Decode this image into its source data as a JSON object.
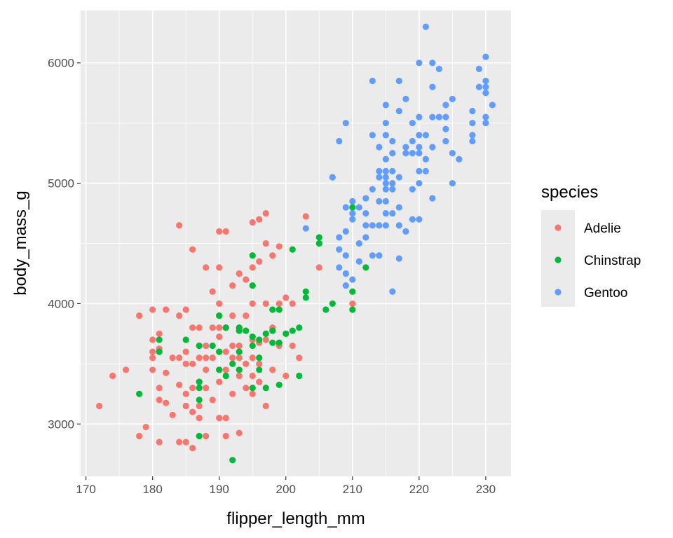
{
  "chart_data": {
    "type": "scatter",
    "xlabel": "flipper_length_mm",
    "ylabel": "body_mass_g",
    "xlim": [
      169.2,
      233.8
    ],
    "ylim": [
      2565,
      6435
    ],
    "x_ticks": [
      170,
      180,
      190,
      200,
      210,
      220,
      230
    ],
    "y_ticks": [
      3000,
      4000,
      5000,
      6000
    ],
    "grid": true,
    "background": "#ebebeb",
    "legend": {
      "title": "species",
      "position": "right"
    },
    "series": [
      {
        "name": "Adelie",
        "color": "#f8766d",
        "points": [
          [
            172,
            3150
          ],
          [
            174,
            3400
          ],
          [
            176,
            3450
          ],
          [
            178,
            2900
          ],
          [
            178,
            3900
          ],
          [
            179,
            2975
          ],
          [
            180,
            3950
          ],
          [
            180,
            3700
          ],
          [
            180,
            3600
          ],
          [
            180,
            3550
          ],
          [
            180,
            3450
          ],
          [
            181,
            2850
          ],
          [
            181,
            3200
          ],
          [
            181,
            3300
          ],
          [
            181,
            3625
          ],
          [
            181,
            3750
          ],
          [
            182,
            3175
          ],
          [
            182,
            3425
          ],
          [
            182,
            3950
          ],
          [
            183,
            3075
          ],
          [
            183,
            3550
          ],
          [
            184,
            2850
          ],
          [
            184,
            4650
          ],
          [
            184,
            3325
          ],
          [
            184,
            3550
          ],
          [
            184,
            3900
          ],
          [
            185,
            2850
          ],
          [
            185,
            3150
          ],
          [
            185,
            3250
          ],
          [
            185,
            3500
          ],
          [
            185,
            3600
          ],
          [
            185,
            3950
          ],
          [
            186,
            2800
          ],
          [
            186,
            3100
          ],
          [
            186,
            3300
          ],
          [
            186,
            3500
          ],
          [
            186,
            3800
          ],
          [
            186,
            4450
          ],
          [
            187,
            3050
          ],
          [
            187,
            3150
          ],
          [
            187,
            3350
          ],
          [
            187,
            3550
          ],
          [
            187,
            3800
          ],
          [
            188,
            2900
          ],
          [
            188,
            3300
          ],
          [
            188,
            3450
          ],
          [
            188,
            3550
          ],
          [
            188,
            3650
          ],
          [
            188,
            4300
          ],
          [
            189,
            3200
          ],
          [
            189,
            3550
          ],
          [
            189,
            3800
          ],
          [
            189,
            4100
          ],
          [
            190,
            3050
          ],
          [
            190,
            3350
          ],
          [
            190,
            3450
          ],
          [
            190,
            3600
          ],
          [
            190,
            3725
          ],
          [
            190,
            3800
          ],
          [
            190,
            3900
          ],
          [
            190,
            4000
          ],
          [
            190,
            4300
          ],
          [
            190,
            4600
          ],
          [
            191,
            2900
          ],
          [
            191,
            3050
          ],
          [
            191,
            3450
          ],
          [
            191,
            3600
          ],
          [
            191,
            3800
          ],
          [
            191,
            4600
          ],
          [
            192,
            3250
          ],
          [
            192,
            3550
          ],
          [
            192,
            3650
          ],
          [
            192,
            3900
          ],
          [
            192,
            4150
          ],
          [
            193,
            2925
          ],
          [
            193,
            3400
          ],
          [
            193,
            3550
          ],
          [
            193,
            3650
          ],
          [
            193,
            3800
          ],
          [
            193,
            4250
          ],
          [
            194,
            3300
          ],
          [
            194,
            3500
          ],
          [
            194,
            3900
          ],
          [
            194,
            4200
          ],
          [
            195,
            3250
          ],
          [
            195,
            3400
          ],
          [
            195,
            3550
          ],
          [
            195,
            3700
          ],
          [
            195,
            4000
          ],
          [
            195,
            4300
          ],
          [
            195,
            4675
          ],
          [
            196,
            3350
          ],
          [
            196,
            3500
          ],
          [
            196,
            3675
          ],
          [
            196,
            4350
          ],
          [
            196,
            4700
          ],
          [
            197,
            3150
          ],
          [
            197,
            3700
          ],
          [
            197,
            4000
          ],
          [
            197,
            4500
          ],
          [
            197,
            4750
          ],
          [
            198,
            3450
          ],
          [
            198,
            3800
          ],
          [
            198,
            4400
          ],
          [
            199,
            3650
          ],
          [
            199,
            4000
          ],
          [
            199,
            4475
          ],
          [
            200,
            3400
          ],
          [
            200,
            4050
          ],
          [
            201,
            3650
          ],
          [
            201,
            4000
          ],
          [
            202,
            3550
          ],
          [
            203,
            4725
          ],
          [
            205,
            4300
          ],
          [
            210,
            4000
          ]
        ]
      },
      {
        "name": "Chinstrap",
        "color": "#00ba38",
        "points": [
          [
            178,
            3250
          ],
          [
            181,
            3700
          ],
          [
            181,
            3600
          ],
          [
            185,
            3700
          ],
          [
            187,
            2900
          ],
          [
            187,
            3200
          ],
          [
            187,
            3300
          ],
          [
            187,
            3350
          ],
          [
            187,
            3650
          ],
          [
            189,
            3650
          ],
          [
            190,
            3450
          ],
          [
            190,
            3600
          ],
          [
            190,
            3900
          ],
          [
            191,
            3400
          ],
          [
            191,
            3800
          ],
          [
            192,
            2700
          ],
          [
            192,
            3500
          ],
          [
            193,
            3450
          ],
          [
            193,
            3600
          ],
          [
            193,
            3775
          ],
          [
            193,
            3800
          ],
          [
            194,
            3775
          ],
          [
            195,
            3300
          ],
          [
            195,
            3650
          ],
          [
            195,
            3725
          ],
          [
            195,
            4150
          ],
          [
            195,
            4400
          ],
          [
            196,
            3550
          ],
          [
            196,
            3450
          ],
          [
            196,
            3700
          ],
          [
            197,
            3300
          ],
          [
            197,
            3750
          ],
          [
            198,
            3675
          ],
          [
            198,
            3775
          ],
          [
            198,
            3950
          ],
          [
            199,
            3325
          ],
          [
            199,
            3675
          ],
          [
            199,
            3950
          ],
          [
            200,
            3750
          ],
          [
            201,
            3775
          ],
          [
            201,
            4450
          ],
          [
            202,
            3400
          ],
          [
            202,
            3800
          ],
          [
            203,
            4100
          ],
          [
            203,
            4050
          ],
          [
            205,
            4550
          ],
          [
            205,
            4500
          ],
          [
            206,
            3950
          ],
          [
            207,
            4000
          ],
          [
            210,
            4100
          ],
          [
            210,
            3950
          ],
          [
            210,
            4800
          ],
          [
            212,
            4300
          ]
        ]
      },
      {
        "name": "Gentoo",
        "color": "#619cff",
        "points": [
          [
            203,
            4625
          ],
          [
            207,
            5050
          ],
          [
            208,
            4550
          ],
          [
            208,
            4450
          ],
          [
            208,
            4300
          ],
          [
            208,
            5350
          ],
          [
            209,
            4800
          ],
          [
            209,
            4600
          ],
          [
            209,
            4400
          ],
          [
            209,
            4250
          ],
          [
            209,
            4150
          ],
          [
            209,
            5500
          ],
          [
            210,
            4750
          ],
          [
            210,
            4850
          ],
          [
            210,
            4700
          ],
          [
            210,
            4200
          ],
          [
            211,
            4500
          ],
          [
            211,
            4800
          ],
          [
            211,
            4350
          ],
          [
            212,
            4875
          ],
          [
            212,
            4650
          ],
          [
            212,
            4750
          ],
          [
            212,
            4550
          ],
          [
            213,
            4950
          ],
          [
            213,
            5400
          ],
          [
            213,
            5850
          ],
          [
            213,
            4650
          ],
          [
            213,
            4400
          ],
          [
            214,
            4850
          ],
          [
            214,
            5050
          ],
          [
            214,
            5300
          ],
          [
            214,
            5100
          ],
          [
            214,
            4650
          ],
          [
            214,
            4400
          ],
          [
            215,
            4750
          ],
          [
            215,
            4950
          ],
          [
            215,
            5050
          ],
          [
            215,
            5000
          ],
          [
            215,
            5200
          ],
          [
            215,
            5400
          ],
          [
            215,
            5500
          ],
          [
            215,
            5650
          ],
          [
            215,
            4850
          ],
          [
            215,
            4650
          ],
          [
            215,
            5100
          ],
          [
            216,
            4750
          ],
          [
            216,
            5000
          ],
          [
            216,
            5250
          ],
          [
            216,
            5350
          ],
          [
            216,
            5100
          ],
          [
            216,
            4950
          ],
          [
            216,
            4100
          ],
          [
            217,
            4650
          ],
          [
            217,
            4800
          ],
          [
            217,
            5050
          ],
          [
            217,
            5600
          ],
          [
            217,
            5850
          ],
          [
            217,
            4375
          ],
          [
            218,
            5300
          ],
          [
            218,
            5700
          ],
          [
            218,
            4600
          ],
          [
            218,
            5250
          ],
          [
            219,
            4950
          ],
          [
            219,
            5250
          ],
          [
            219,
            5500
          ],
          [
            219,
            4700
          ],
          [
            219,
            5350
          ],
          [
            220,
            5400
          ],
          [
            220,
            5550
          ],
          [
            220,
            5250
          ],
          [
            220,
            5100
          ],
          [
            220,
            5000
          ],
          [
            220,
            4700
          ],
          [
            220,
            6000
          ],
          [
            220,
            5300
          ],
          [
            221,
            6300
          ],
          [
            221,
            5400
          ],
          [
            221,
            5200
          ],
          [
            221,
            5100
          ],
          [
            222,
            5550
          ],
          [
            222,
            5800
          ],
          [
            222,
            6000
          ],
          [
            222,
            5300
          ],
          [
            222,
            4875
          ],
          [
            223,
            5550
          ],
          [
            223,
            5950
          ],
          [
            224,
            5650
          ],
          [
            224,
            5350
          ],
          [
            224,
            5450
          ],
          [
            224,
            5550
          ],
          [
            225,
            5700
          ],
          [
            225,
            5250
          ],
          [
            225,
            5000
          ],
          [
            226,
            5200
          ],
          [
            228,
            5600
          ],
          [
            228,
            5400
          ],
          [
            228,
            5500
          ],
          [
            228,
            5350
          ],
          [
            229,
            5800
          ],
          [
            229,
            5950
          ],
          [
            230,
            6050
          ],
          [
            230,
            5850
          ],
          [
            230,
            5800
          ],
          [
            230,
            5750
          ],
          [
            230,
            5550
          ],
          [
            230,
            5500
          ],
          [
            231,
            5650
          ]
        ]
      }
    ]
  }
}
